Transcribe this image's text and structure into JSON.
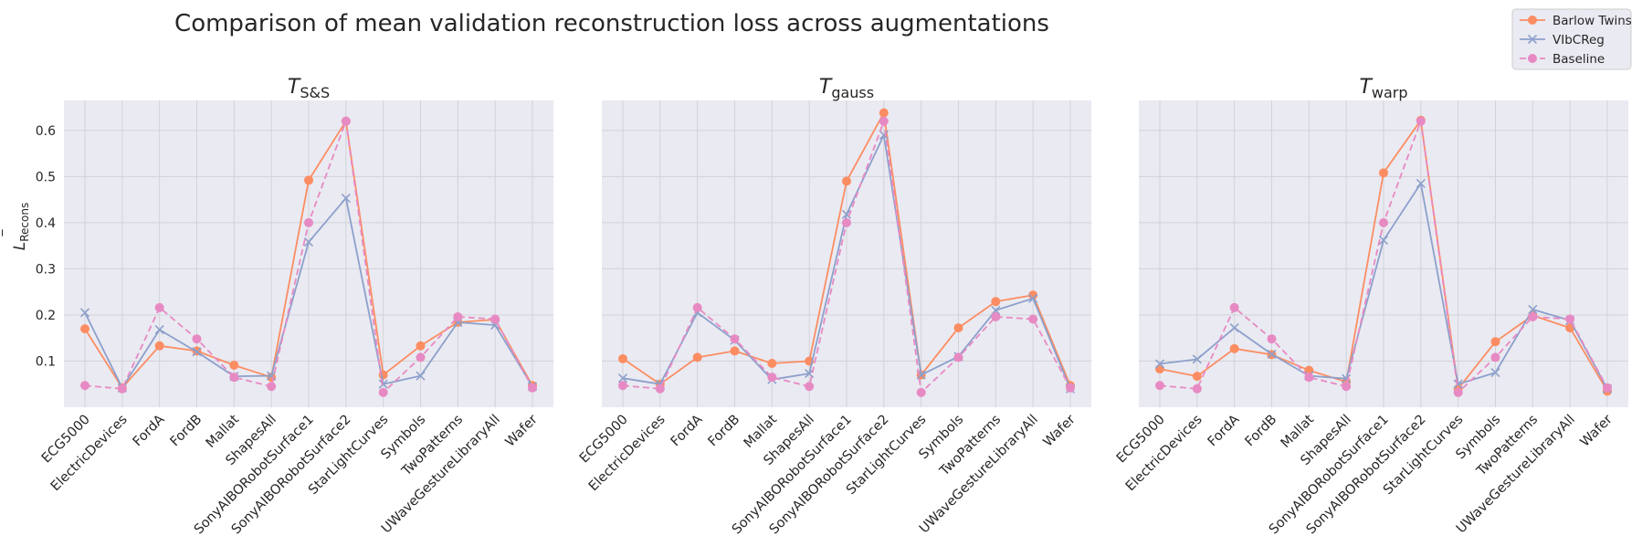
{
  "figure": {
    "title": "Comparison of mean validation reconstruction loss across augmentations",
    "ylabel_main": "L",
    "ylabel_sub": "Recons"
  },
  "legend": {
    "placement": "top-right",
    "entries": [
      {
        "name": "Barlow Twins",
        "color": "#fc8d62",
        "marker": "circle",
        "dash": "solid"
      },
      {
        "name": "VIbCReg",
        "color": "#8da0cb",
        "marker": "x",
        "dash": "solid"
      },
      {
        "name": "Baseline",
        "color": "#e78ac3",
        "marker": "circle",
        "dash": "dashed"
      }
    ]
  },
  "chart_data": [
    {
      "type": "line",
      "title_main": "T",
      "title_sub": "S&S",
      "ylim": [
        0.0,
        0.665
      ],
      "yticks": [
        0.1,
        0.2,
        0.3,
        0.4,
        0.5,
        0.6
      ],
      "ytick_labels": [
        "0.1",
        "0.2",
        "0.3",
        "0.4",
        "0.5",
        "0.6"
      ],
      "show_yticks": true,
      "categories": [
        "ECG5000",
        "ElectricDevices",
        "FordA",
        "FordB",
        "Mallat",
        "ShapesAll",
        "SonyAIBORobotSurface1",
        "SonyAIBORobotSurface2",
        "StarLightCurves",
        "Symbols",
        "TwoPatterns",
        "UWaveGestureLibraryAll",
        "Wafer"
      ],
      "series": [
        {
          "name": "Barlow Twins",
          "values": [
            0.17,
            0.042,
            0.133,
            0.122,
            0.091,
            0.065,
            0.492,
            0.62,
            0.07,
            0.133,
            0.184,
            0.19,
            0.047
          ]
        },
        {
          "name": "VIbCReg",
          "values": [
            0.205,
            0.042,
            0.168,
            0.12,
            0.067,
            0.068,
            0.358,
            0.453,
            0.05,
            0.068,
            0.184,
            0.178,
            0.045
          ]
        },
        {
          "name": "Baseline",
          "values": [
            0.047,
            0.04,
            0.216,
            0.148,
            0.065,
            0.045,
            0.4,
            0.62,
            0.032,
            0.108,
            0.196,
            0.191,
            0.042
          ]
        }
      ]
    },
    {
      "type": "line",
      "title_main": "T",
      "title_sub": "gauss",
      "ylim": [
        0.0,
        0.665
      ],
      "yticks": [
        0.1,
        0.2,
        0.3,
        0.4,
        0.5,
        0.6
      ],
      "ytick_labels": [
        "0.1",
        "0.2",
        "0.3",
        "0.4",
        "0.5",
        "0.6"
      ],
      "show_yticks": false,
      "categories": [
        "ECG5000",
        "ElectricDevices",
        "FordA",
        "FordB",
        "Mallat",
        "ShapesAll",
        "SonyAIBORobotSurface1",
        "SonyAIBORobotSurface2",
        "StarLightCurves",
        "Symbols",
        "TwoPatterns",
        "UWaveGestureLibraryAll",
        "Wafer"
      ],
      "series": [
        {
          "name": "Barlow Twins",
          "values": [
            0.105,
            0.05,
            0.108,
            0.122,
            0.095,
            0.1,
            0.49,
            0.638,
            0.07,
            0.172,
            0.229,
            0.243,
            0.047
          ]
        },
        {
          "name": "VIbCReg",
          "values": [
            0.063,
            0.05,
            0.205,
            0.145,
            0.06,
            0.073,
            0.418,
            0.59,
            0.07,
            0.11,
            0.21,
            0.236,
            0.04
          ]
        },
        {
          "name": "Baseline",
          "values": [
            0.047,
            0.04,
            0.216,
            0.148,
            0.065,
            0.045,
            0.4,
            0.62,
            0.032,
            0.108,
            0.196,
            0.191,
            0.042
          ]
        }
      ]
    },
    {
      "type": "line",
      "title_main": "T",
      "title_sub": "warp",
      "ylim": [
        0.0,
        0.665
      ],
      "yticks": [
        0.1,
        0.2,
        0.3,
        0.4,
        0.5,
        0.6
      ],
      "ytick_labels": [
        "0.1",
        "0.2",
        "0.3",
        "0.4",
        "0.5",
        "0.6"
      ],
      "show_yticks": false,
      "categories": [
        "ECG5000",
        "ElectricDevices",
        "FordA",
        "FordB",
        "Mallat",
        "ShapesAll",
        "SonyAIBORobotSurface1",
        "SonyAIBORobotSurface2",
        "StarLightCurves",
        "Symbols",
        "TwoPatterns",
        "UWaveGestureLibraryAll",
        "Wafer"
      ],
      "series": [
        {
          "name": "Barlow Twins",
          "values": [
            0.083,
            0.067,
            0.127,
            0.114,
            0.08,
            0.055,
            0.508,
            0.622,
            0.04,
            0.142,
            0.199,
            0.172,
            0.035
          ]
        },
        {
          "name": "VIbCReg",
          "values": [
            0.094,
            0.104,
            0.172,
            0.115,
            0.068,
            0.062,
            0.362,
            0.485,
            0.05,
            0.075,
            0.212,
            0.188,
            0.04
          ]
        },
        {
          "name": "Baseline",
          "values": [
            0.047,
            0.04,
            0.216,
            0.148,
            0.065,
            0.045,
            0.4,
            0.62,
            0.032,
            0.108,
            0.196,
            0.191,
            0.042
          ]
        }
      ]
    }
  ]
}
